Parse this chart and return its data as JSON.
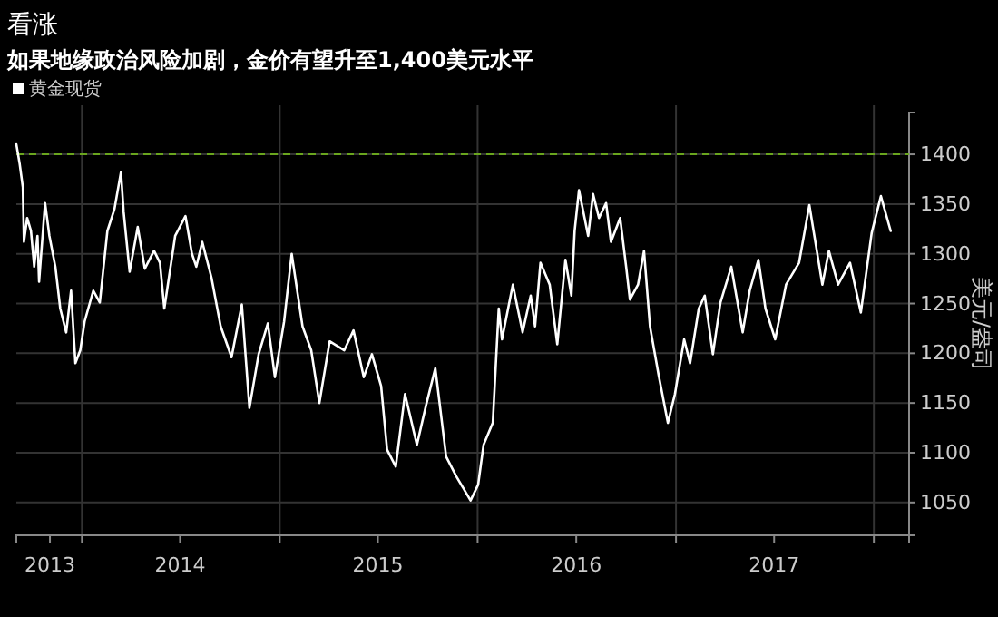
{
  "chart_data": {
    "type": "line",
    "title": "看涨",
    "subtitle": "如果地缘政治风险加剧，金价有望升至1,400美元水平",
    "ylabel": "美元/盎司",
    "series": [
      {
        "name": "黄金现货",
        "color": "#ffffff",
        "x": [
          "2013-09-02",
          "2013-09-08",
          "2013-09-14",
          "2013-09-16",
          "2013-09-22",
          "2013-09-29",
          "2013-10-05",
          "2013-10-11",
          "2013-10-14",
          "2013-10-25",
          "2013-11-02",
          "2013-11-13",
          "2013-11-22",
          "2013-12-03",
          "2013-12-12",
          "2013-12-20",
          "2013-12-29",
          "2014-01-06",
          "2014-01-22",
          "2014-02-03",
          "2014-02-17",
          "2014-03-02",
          "2014-03-14",
          "2014-03-19",
          "2014-03-30",
          "2014-04-14",
          "2014-04-27",
          "2014-05-14",
          "2014-05-25",
          "2014-06-02",
          "2014-06-22",
          "2014-07-11",
          "2014-07-23",
          "2014-07-31",
          "2014-08-11",
          "2014-08-28",
          "2014-09-14",
          "2014-10-04",
          "2014-10-23",
          "2014-11-06",
          "2014-11-23",
          "2014-12-10",
          "2014-12-23",
          "2015-01-09",
          "2015-01-23",
          "2015-02-12",
          "2015-02-28",
          "2015-03-15",
          "2015-04-03",
          "2015-04-30",
          "2015-05-17",
          "2015-06-05",
          "2015-06-20",
          "2015-07-07",
          "2015-07-18",
          "2015-08-03",
          "2015-08-20",
          "2015-09-11",
          "2015-09-28",
          "2015-10-15",
          "2015-11-04",
          "2015-11-23",
          "2015-12-19",
          "2016-01-02",
          "2016-01-12",
          "2016-01-29",
          "2016-02-09",
          "2016-02-15",
          "2016-03-06",
          "2016-03-24",
          "2016-04-08",
          "2016-04-16",
          "2016-04-26",
          "2016-05-13",
          "2016-05-27",
          "2016-06-11",
          "2016-06-22",
          "2016-06-28",
          "2016-07-06",
          "2016-07-23",
          "2016-08-01",
          "2016-08-12",
          "2016-08-25",
          "2016-09-03",
          "2016-09-20",
          "2016-10-01",
          "2016-10-08",
          "2016-10-23",
          "2016-11-03",
          "2016-11-14",
          "2016-11-30",
          "2016-12-17",
          "2016-12-30",
          "2017-01-16",
          "2017-01-27",
          "2017-02-12",
          "2017-02-23",
          "2017-03-10",
          "2017-03-24",
          "2017-04-13",
          "2017-05-04",
          "2017-05-17",
          "2017-06-02",
          "2017-06-15",
          "2017-07-03",
          "2017-07-23",
          "2017-08-16",
          "2017-09-04",
          "2017-09-28",
          "2017-10-10",
          "2017-10-27",
          "2017-11-18",
          "2017-12-08",
          "2017-12-28",
          "2018-01-14",
          "2018-02-01"
        ],
        "values": [
          1410,
          1391,
          1367,
          1312,
          1336,
          1323,
          1287,
          1318,
          1272,
          1351,
          1318,
          1287,
          1245,
          1221,
          1263,
          1190,
          1203,
          1232,
          1263,
          1251,
          1323,
          1345,
          1382,
          1342,
          1282,
          1327,
          1285,
          1303,
          1291,
          1245,
          1318,
          1338,
          1300,
          1287,
          1312,
          1276,
          1227,
          1196,
          1249,
          1145,
          1199,
          1230,
          1176,
          1232,
          1300,
          1227,
          1203,
          1150,
          1212,
          1203,
          1223,
          1176,
          1199,
          1167,
          1103,
          1086,
          1159,
          1108,
          1148,
          1185,
          1096,
          1076,
          1052,
          1068,
          1108,
          1130,
          1245,
          1214,
          1269,
          1221,
          1258,
          1227,
          1291,
          1269,
          1209,
          1294,
          1258,
          1323,
          1364,
          1318,
          1360,
          1336,
          1351,
          1312,
          1336,
          1287,
          1254,
          1269,
          1303,
          1227,
          1178,
          1130,
          1159,
          1214,
          1190,
          1245,
          1258,
          1199,
          1251,
          1287,
          1221,
          1263,
          1294,
          1245,
          1214,
          1269,
          1291,
          1349,
          1269,
          1303,
          1269,
          1291,
          1241,
          1321,
          1358,
          1323
        ]
      }
    ],
    "xlim": [
      "2013-09-02",
      "2018-03-07"
    ],
    "xticks": [
      {
        "value": "2014-01-01",
        "label": null
      },
      {
        "value": "2015-01-01",
        "label": null
      },
      {
        "value": "2016-01-01",
        "label": null
      },
      {
        "value": "2017-01-01",
        "label": null
      },
      {
        "value": "2018-01-01",
        "label": null
      },
      {
        "value": "2013-11-03",
        "label": "2013"
      },
      {
        "value": "2014-07-01",
        "label": "2014"
      },
      {
        "value": "2015-07-01",
        "label": "2015"
      },
      {
        "value": "2016-07-01",
        "label": "2016"
      },
      {
        "value": "2017-07-01",
        "label": "2017"
      }
    ],
    "ylim": [
      1017,
      1442
    ],
    "yticks": [
      1050,
      1100,
      1150,
      1200,
      1250,
      1300,
      1350,
      1400
    ],
    "ref_lines": [
      {
        "axis": "y",
        "value": 1400,
        "label": null,
        "color": "#6aa61e",
        "line_style": "dashed"
      }
    ],
    "grid": true,
    "legend": "top left",
    "line_style": "solid",
    "marker": "none"
  }
}
